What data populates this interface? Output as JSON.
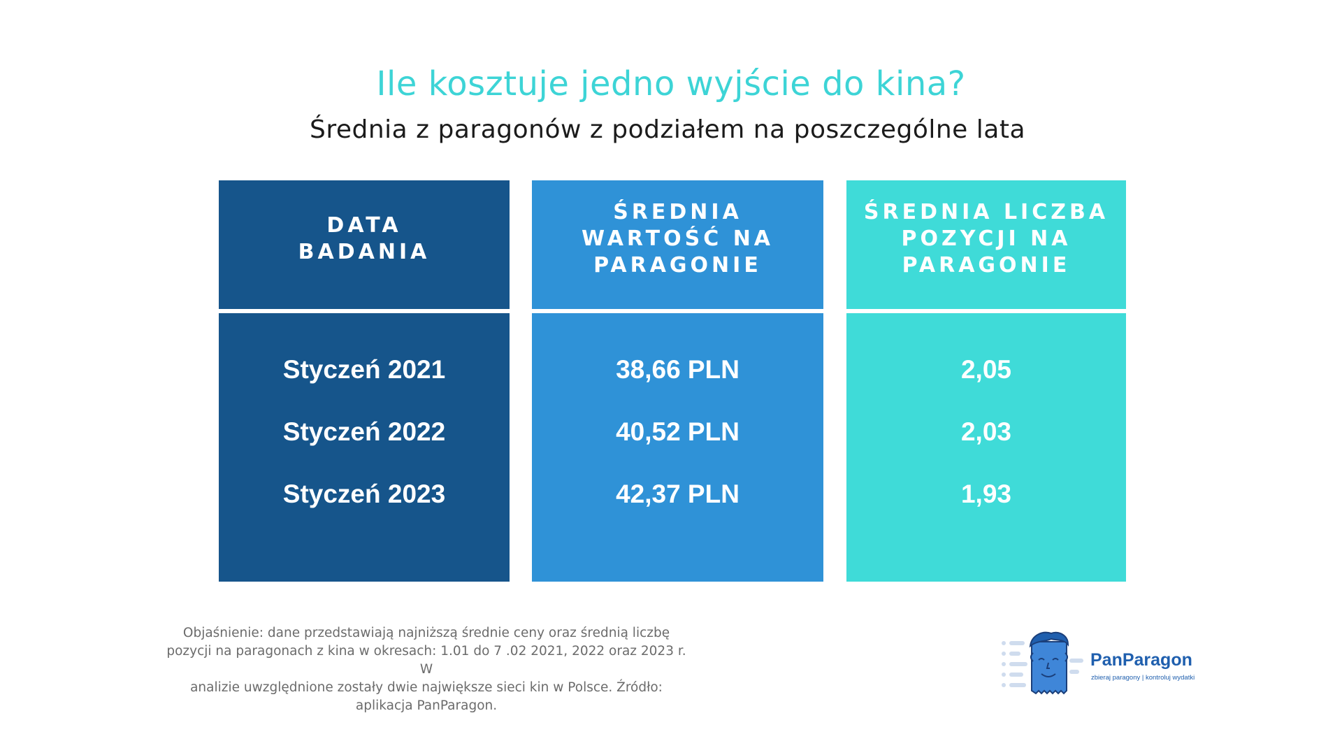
{
  "header": {
    "title": "Ile kosztuje jedno wyjście do kina?",
    "subtitle": "Średnia z paragonów z podziałem na poszczególne lata"
  },
  "table": {
    "columns": [
      {
        "header_line1": "DATA",
        "header_line2": "BADANIA",
        "header_line3": ""
      },
      {
        "header_line1": "ŚREDNIA",
        "header_line2": "WARTOŚĆ NA",
        "header_line3": "PARAGONIE"
      },
      {
        "header_line1": "ŚREDNIA LICZBA",
        "header_line2": "POZYCJI NA",
        "header_line3": "PARAGONIE"
      }
    ],
    "rows": [
      {
        "date": "Styczeń 2021",
        "avg_value": "38,66 PLN",
        "avg_items": "2,05"
      },
      {
        "date": "Styczeń 2022",
        "avg_value": "40,52 PLN",
        "avg_items": "2,03"
      },
      {
        "date": "Styczeń 2023",
        "avg_value": "42,37 PLN",
        "avg_items": "1,93"
      }
    ]
  },
  "footnote": {
    "line1": "Objaśnienie: dane przedstawiają najniższą średnie ceny oraz średnią liczbę",
    "line2": "pozycji  na paragonach z kina w okresach: 1.01 do 7 .02 2021, 2022 oraz 2023 r. W",
    "line3": "analizie uwzględnione zostały dwie największe sieci kin w Polsce. Źródło:",
    "line4": "aplikacja PanParagon."
  },
  "logo": {
    "name": "PanParagon",
    "tagline": "zbieraj paragony | kontroluj wydatki",
    "icon": "receipt-mascot-icon"
  },
  "colors": {
    "title": "#3dd4d6",
    "col1": "#16558b",
    "col2": "#2f92d7",
    "col3": "#3fdbd8",
    "brand": "#1f5fae"
  }
}
